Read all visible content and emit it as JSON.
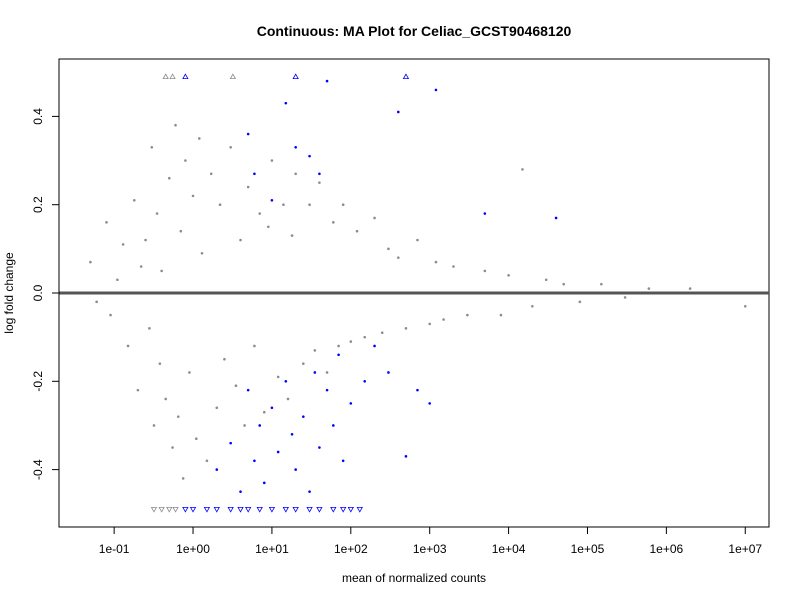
{
  "chart_data": {
    "type": "scatter",
    "title": "Continuous: MA Plot for Celiac_GCST90468120",
    "xlabel": "mean of normalized counts",
    "ylabel": "log fold change",
    "x_scale": "log10",
    "xlim": [
      0.02,
      20000000
    ],
    "ylim": [
      -0.53,
      0.53
    ],
    "x_ticks": [
      {
        "value": 0.1,
        "label": "1e-01"
      },
      {
        "value": 1,
        "label": "1e+00"
      },
      {
        "value": 10,
        "label": "1e+01"
      },
      {
        "value": 100,
        "label": "1e+02"
      },
      {
        "value": 1000,
        "label": "1e+03"
      },
      {
        "value": 10000,
        "label": "1e+04"
      },
      {
        "value": 100000,
        "label": "1e+05"
      },
      {
        "value": 1000000,
        "label": "1e+06"
      },
      {
        "value": 10000000,
        "label": "1e+07"
      }
    ],
    "y_ticks": [
      {
        "value": -0.4,
        "label": "-0.4"
      },
      {
        "value": -0.2,
        "label": "-0.2"
      },
      {
        "value": 0.0,
        "label": "0.0"
      },
      {
        "value": 0.2,
        "label": "0.2"
      },
      {
        "value": 0.4,
        "label": "0.4"
      }
    ],
    "reference_line": {
      "y": 0,
      "color": "#555555"
    },
    "grid": false,
    "legend": "none",
    "series": [
      {
        "color": "#8c8c8c",
        "marker": "dot",
        "points": [
          [
            0.05,
            0.07
          ],
          [
            0.06,
            -0.02
          ],
          [
            0.08,
            0.16
          ],
          [
            0.09,
            -0.05
          ],
          [
            0.11,
            0.03
          ],
          [
            0.13,
            0.11
          ],
          [
            0.15,
            -0.12
          ],
          [
            0.18,
            0.21
          ],
          [
            0.2,
            -0.22
          ],
          [
            0.22,
            0.06
          ],
          [
            0.25,
            0.12
          ],
          [
            0.28,
            -0.08
          ],
          [
            0.3,
            0.33
          ],
          [
            0.32,
            -0.3
          ],
          [
            0.35,
            0.18
          ],
          [
            0.38,
            -0.16
          ],
          [
            0.4,
            0.05
          ],
          [
            0.45,
            -0.24
          ],
          [
            0.5,
            0.26
          ],
          [
            0.55,
            -0.35
          ],
          [
            0.6,
            0.38
          ],
          [
            0.65,
            -0.28
          ],
          [
            0.7,
            0.14
          ],
          [
            0.75,
            -0.42
          ],
          [
            0.8,
            0.3
          ],
          [
            0.9,
            -0.18
          ],
          [
            1.0,
            0.22
          ],
          [
            1.1,
            -0.33
          ],
          [
            1.2,
            0.35
          ],
          [
            1.3,
            0.09
          ],
          [
            1.5,
            -0.38
          ],
          [
            1.7,
            0.27
          ],
          [
            2.0,
            -0.26
          ],
          [
            2.2,
            0.2
          ],
          [
            2.5,
            -0.15
          ],
          [
            3.0,
            0.33
          ],
          [
            3.5,
            -0.21
          ],
          [
            4.0,
            0.12
          ],
          [
            4.5,
            -0.3
          ],
          [
            5.0,
            0.24
          ],
          [
            6.0,
            -0.12
          ],
          [
            7.0,
            0.18
          ],
          [
            8.0,
            -0.27
          ],
          [
            9.0,
            0.15
          ],
          [
            10,
            0.3
          ],
          [
            12,
            -0.19
          ],
          [
            14,
            0.2
          ],
          [
            16,
            -0.24
          ],
          [
            18,
            0.13
          ],
          [
            20,
            0.27
          ],
          [
            25,
            -0.16
          ],
          [
            30,
            0.2
          ],
          [
            35,
            -0.13
          ],
          [
            40,
            0.25
          ],
          [
            50,
            -0.18
          ],
          [
            60,
            0.16
          ],
          [
            70,
            -0.12
          ],
          [
            80,
            0.2
          ],
          [
            100,
            -0.11
          ],
          [
            120,
            0.14
          ],
          [
            150,
            -0.1
          ],
          [
            200,
            0.17
          ],
          [
            250,
            -0.09
          ],
          [
            300,
            0.1
          ],
          [
            400,
            0.08
          ],
          [
            500,
            -0.08
          ],
          [
            700,
            0.12
          ],
          [
            1000,
            -0.07
          ],
          [
            1200,
            0.07
          ],
          [
            1500,
            -0.06
          ],
          [
            2000,
            0.06
          ],
          [
            3000,
            -0.05
          ],
          [
            5000,
            0.05
          ],
          [
            8000,
            -0.05
          ],
          [
            10000,
            0.04
          ],
          [
            15000,
            0.28
          ],
          [
            20000,
            -0.03
          ],
          [
            30000,
            0.03
          ],
          [
            50000,
            0.02
          ],
          [
            80000,
            -0.02
          ],
          [
            150000,
            0.02
          ],
          [
            300000,
            -0.01
          ],
          [
            600000,
            0.01
          ],
          [
            2000000,
            0.01
          ],
          [
            10000000,
            -0.03
          ]
        ]
      },
      {
        "color": "#0000ff",
        "marker": "dot",
        "points": [
          [
            5,
            0.36
          ],
          [
            6,
            0.27
          ],
          [
            10,
            0.21
          ],
          [
            15,
            0.43
          ],
          [
            20,
            0.33
          ],
          [
            30,
            0.31
          ],
          [
            40,
            0.27
          ],
          [
            50,
            0.48
          ],
          [
            400,
            0.41
          ],
          [
            1200,
            0.46
          ],
          [
            40000,
            0.17
          ],
          [
            5000,
            0.18
          ],
          [
            2,
            -0.4
          ],
          [
            3,
            -0.34
          ],
          [
            4,
            -0.45
          ],
          [
            5,
            -0.22
          ],
          [
            6,
            -0.38
          ],
          [
            7,
            -0.3
          ],
          [
            8,
            -0.43
          ],
          [
            10,
            -0.26
          ],
          [
            12,
            -0.36
          ],
          [
            15,
            -0.2
          ],
          [
            18,
            -0.32
          ],
          [
            20,
            -0.4
          ],
          [
            25,
            -0.28
          ],
          [
            30,
            -0.45
          ],
          [
            35,
            -0.18
          ],
          [
            40,
            -0.35
          ],
          [
            50,
            -0.22
          ],
          [
            60,
            -0.3
          ],
          [
            70,
            -0.14
          ],
          [
            80,
            -0.38
          ],
          [
            100,
            -0.25
          ],
          [
            150,
            -0.2
          ],
          [
            200,
            -0.12
          ],
          [
            300,
            -0.18
          ],
          [
            500,
            -0.37
          ],
          [
            700,
            -0.22
          ],
          [
            1000,
            -0.25
          ]
        ]
      },
      {
        "color": "#0000ff",
        "marker": "triangle-up",
        "points": [
          [
            0.8,
            0.49
          ],
          [
            20,
            0.49
          ],
          [
            500,
            0.49
          ]
        ]
      },
      {
        "color": "#8c8c8c",
        "marker": "triangle-up",
        "points": [
          [
            0.45,
            0.49
          ],
          [
            0.55,
            0.49
          ],
          [
            3.2,
            0.49
          ]
        ]
      },
      {
        "color": "#0000ff",
        "marker": "triangle-down",
        "points": [
          [
            0.8,
            -0.49
          ],
          [
            1,
            -0.49
          ],
          [
            1.5,
            -0.49
          ],
          [
            2,
            -0.49
          ],
          [
            3,
            -0.49
          ],
          [
            4,
            -0.49
          ],
          [
            5,
            -0.49
          ],
          [
            7,
            -0.49
          ],
          [
            10,
            -0.49
          ],
          [
            15,
            -0.49
          ],
          [
            20,
            -0.49
          ],
          [
            30,
            -0.49
          ],
          [
            40,
            -0.49
          ],
          [
            60,
            -0.49
          ],
          [
            80,
            -0.49
          ],
          [
            100,
            -0.49
          ],
          [
            130,
            -0.49
          ]
        ]
      },
      {
        "color": "#8c8c8c",
        "marker": "triangle-down",
        "points": [
          [
            0.32,
            -0.49
          ],
          [
            0.4,
            -0.49
          ],
          [
            0.5,
            -0.49
          ],
          [
            0.6,
            -0.49
          ]
        ]
      }
    ]
  }
}
